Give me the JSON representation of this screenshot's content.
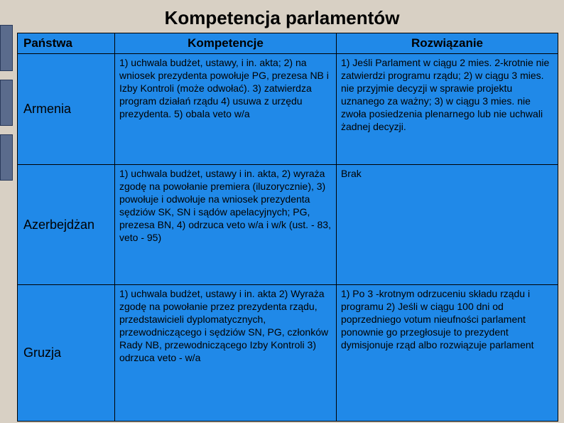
{
  "title": "Kompetencja parlamentów",
  "headers": {
    "country": "Państwa",
    "comp": "Kompetencje",
    "sol": "Rozwiązanie"
  },
  "rows": [
    {
      "country": "Armenia",
      "comp": "1) uchwala budżet, ustawy, i in. akta; 2) na wniosek prezydenta powołuje PG, prezesa NB i Izby Kontroli (może odwołać). 3) zatwierdza program działań rządu 4) usuwa z urzędu prezydenta. 5) obala veto w/a",
      "sol": "1) Jeśli Parlament w ciągu 2 mies. 2-krotnie nie zatwierdzi programu rządu; 2) w ciągu 3 mies. nie przyjmie decyzji w sprawie projektu uznanego za ważny; 3) w ciągu 3 mies. nie zwoła posiedzenia plenarnego lub nie uchwali żadnej decyzji."
    },
    {
      "country": "Azerbejdżan",
      "comp": "1) uchwala budżet, ustawy i in. akta, 2) wyraża zgodę na powołanie premiera (iluzorycznie), 3) powołuje i odwołuje na wniosek prezydenta sędziów SK, SN i sądów apelacyjnych; PG, prezesa BN, 4) odrzuca veto w/a i w/k (ust. - 83, veto - 95)",
      "sol": "Brak"
    },
    {
      "country": "Gruzja",
      "comp": "1) uchwala budżet, ustawy i in. akta 2) Wyraża zgodę na powołanie przez prezydenta rządu, przedstawicieli dyplomatycznych, przewodniczącego i sędziów SN, PG, członków Rady NB, przewodniczącego Izby Kontroli 3) odrzuca veto - w/a",
      "sol": "1) Po 3 -krotnym odrzuceniu składu rządu i programu 2) Jeśli w ciągu 100 dni od poprzedniego votum nieufności parlament ponownie go przegłosuje to prezydent dymisjonuje rząd albo rozwiązuje parlament"
    }
  ],
  "colors": {
    "page_bg": "#d8d0c4",
    "table_bg": "#2089e8",
    "side_tab": "#5a6b8c",
    "border": "#000000",
    "text": "#000000"
  }
}
